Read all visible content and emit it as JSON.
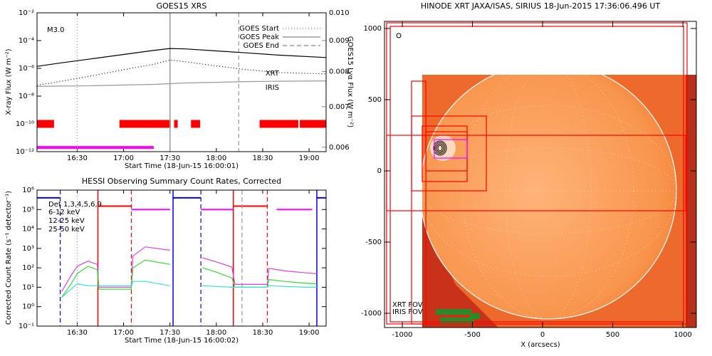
{
  "chart_data": [
    {
      "type": "line",
      "title": "GOES15 XRS",
      "x_label": "Start Time (18-Jun-15 16:00:01)",
      "y_label": "X-ray Flux (W m⁻²)",
      "y2_label": "GOES15 Lyα Flux (W m⁻²)",
      "annotation": "M3.0",
      "log_y": true,
      "xlim": [
        4,
        191
      ],
      "xticks": [
        {
          "value": 30,
          "label": "16:30"
        },
        {
          "value": 60,
          "label": "17:00"
        },
        {
          "value": 90,
          "label": "17:30"
        },
        {
          "value": 120,
          "label": "18:00"
        },
        {
          "value": 150,
          "label": "18:30"
        },
        {
          "value": 180,
          "label": "19:00"
        }
      ],
      "ylim": [
        1e-12,
        0.01
      ],
      "yticks": [
        {
          "value": 1e-12,
          "label": "10⁻¹²"
        },
        {
          "value": 1e-10,
          "label": "10⁻¹⁰"
        },
        {
          "value": 1e-08,
          "label": "10⁻⁸"
        },
        {
          "value": 1e-06,
          "label": "10⁻⁶"
        },
        {
          "value": 0.0001,
          "label": "10⁻⁴"
        },
        {
          "value": 0.01,
          "label": "10⁻²"
        }
      ],
      "y2lim": [
        0.0059,
        0.01
      ],
      "y2ticks": [
        0.006,
        0.007,
        0.008,
        0.009,
        {
          "value": 0.01,
          "label": "0.010"
        }
      ],
      "x": [
        4,
        20,
        40,
        60,
        80,
        90,
        100,
        120,
        140,
        160,
        191
      ],
      "series": [
        {
          "color": "#000000",
          "style": "solid",
          "values": [
            1.4e-06,
            2.5e-06,
            5e-06,
            1e-05,
            2e-05,
            2.7e-05,
            2.5e-05,
            1.8e-05,
            1.3e-05,
            9e-06,
            6e-06
          ]
        },
        {
          "color": "#000000",
          "style": "dotted",
          "values": [
            6e-08,
            1.2e-07,
            3e-07,
            8e-07,
            2e-06,
            4e-06,
            3e-06,
            1.5e-06,
            8e-07,
            5e-07,
            4e-07
          ]
        },
        {
          "color": "#999999",
          "style": "solid",
          "axis": "y2",
          "values": [
            0.00756,
            0.00757,
            0.00758,
            0.0076,
            0.00762,
            0.00764,
            0.00766,
            0.00768,
            0.0077,
            0.00771,
            0.00772
          ]
        }
      ],
      "coverage": [
        {
          "name": "XRT",
          "color": "#ff0000",
          "level": 1e-10,
          "intervals": [
            [
              4,
              15
            ],
            [
              57.3,
              90.5
            ],
            [
              92.7,
              95
            ],
            [
              103.6,
              109.5
            ],
            [
              148,
              173
            ],
            [
              174,
              191
            ]
          ]
        },
        {
          "name": "IRIS",
          "color": "#ff00ff",
          "level": 2e-12,
          "intervals": [
            [
              4,
              79.5
            ]
          ]
        }
      ],
      "markers": [
        {
          "name": "GOES Start",
          "x": 30,
          "color": "#999999",
          "style": "dotted"
        },
        {
          "name": "GOES Peak",
          "x": 90,
          "color": "#999999",
          "style": "solid"
        },
        {
          "name": "GOES End",
          "x": 134.5,
          "color": "#999999",
          "style": "dashed"
        }
      ]
    },
    {
      "type": "line",
      "title": "HESSI Observing Summary Count Rates, Corrected",
      "x_label": "Start Time (18-Jun-15 16:00:02)",
      "y_label": "Corrected Count Rate (s⁻¹ detector⁻¹)",
      "annotation": "Det 1,3,4,5,6,9",
      "log_y": true,
      "xlim": [
        4,
        191
      ],
      "xticks": [
        {
          "value": 30,
          "label": "16:30"
        },
        {
          "value": 60,
          "label": "17:00"
        },
        {
          "value": 90,
          "label": "17:30"
        },
        {
          "value": 120,
          "label": "18:00"
        },
        {
          "value": 150,
          "label": "18:30"
        },
        {
          "value": 180,
          "label": "19:00"
        }
      ],
      "ylim": [
        0.1,
        1000000
      ],
      "yticks": [
        {
          "value": 0.1,
          "label": "10⁻¹"
        },
        {
          "value": 1,
          "label": "10⁰"
        },
        {
          "value": 10,
          "label": "10¹"
        },
        {
          "value": 100,
          "label": "10²"
        },
        {
          "value": 1000,
          "label": "10³"
        },
        {
          "value": 10000,
          "label": "10⁴"
        },
        {
          "value": 100000,
          "label": "10⁵"
        },
        {
          "value": 1000000,
          "label": "10⁶"
        }
      ],
      "x": [
        20,
        26,
        30,
        37,
        43,
        44,
        54,
        65,
        66,
        74,
        90,
        100,
        111,
        120,
        130,
        132,
        141,
        153,
        154,
        164,
        178,
        185
      ],
      "series": [
        {
          "name": "6-12 keV",
          "color": "#e040e0",
          "style": "solid",
          "values": [
            6,
            40,
            120,
            220,
            150,
            10,
            10,
            10,
            400,
            1200,
            800,
            null,
            330,
            200,
            110,
            14,
            14,
            14,
            95,
            70,
            55,
            50
          ]
        },
        {
          "name": "12-25 keV",
          "color": "#30e030",
          "style": "solid",
          "values": [
            3,
            15,
            50,
            120,
            80,
            8,
            8,
            8,
            100,
            250,
            150,
            null,
            100,
            60,
            30,
            10,
            10,
            10,
            25,
            20,
            16,
            15
          ]
        },
        {
          "name": "25-50 keV",
          "color": "#30e0e0",
          "style": "solid",
          "values": [
            3,
            8,
            15,
            12,
            12,
            12,
            12,
            12,
            20,
            20,
            12,
            null,
            12,
            11,
            10,
            10,
            10,
            10,
            12,
            11,
            10,
            10
          ]
        }
      ],
      "coverage": [
        {
          "color": "#0000ff",
          "level": 400000,
          "intervals": [
            [
              4,
              19
            ],
            [
              92,
              110
            ],
            [
              185,
              191
            ]
          ]
        },
        {
          "color": "#ff0000",
          "level": 150000,
          "intervals": [
            [
              43.4,
              65
            ],
            [
              131,
              153
            ]
          ]
        },
        {
          "color": "#ff00ff",
          "level": 100000,
          "intervals": [
            [
              65,
              90
            ],
            [
              110,
              131
            ],
            [
              159,
              182
            ]
          ]
        }
      ],
      "markers": [
        {
          "x": 19,
          "color": "#0000ff",
          "style": "dashed"
        },
        {
          "x": 110,
          "color": "#0000ff",
          "style": "dashed"
        },
        {
          "x": 43.4,
          "color": "#ff0000",
          "style": "solid"
        },
        {
          "x": 131,
          "color": "#ff0000",
          "style": "solid"
        },
        {
          "x": 65,
          "color": "#ff0000",
          "style": "dashed"
        },
        {
          "x": 153,
          "color": "#ff0000",
          "style": "dashed"
        },
        {
          "x": 92,
          "color": "#0000ff",
          "style": "solid"
        },
        {
          "x": 185,
          "color": "#0000ff",
          "style": "solid"
        },
        {
          "x": 30,
          "color": "#999999",
          "style": "dotted"
        },
        {
          "x": 136.6,
          "color": "#999999",
          "style": "dashed"
        }
      ]
    },
    {
      "type": "image",
      "title": "HINODE XRT JAXA/ISAS, SIRIUS 18-Jun-2015 17:36:06.496 UT",
      "x_label": "X (arcsecs)",
      "xlim": [
        -1127,
        1096
      ],
      "ylim": [
        -1100,
        1050
      ],
      "xticks": [
        -1000,
        -500,
        0,
        500,
        1000
      ],
      "yticks": [
        -1000,
        -500,
        0,
        500,
        1000
      ],
      "fovs": [
        {
          "name": "XRT FOV",
          "color": "#ff0000",
          "boxes": [
            [
              -1112,
              1030,
              -1075,
              1040
            ],
            [
              -1086,
              1005,
              -1060,
              1015
            ],
            [
              -934,
              -832,
              -1075,
              630
            ],
            [
              -934,
              -401,
              -140,
              385
            ],
            [
              -858,
              -538,
              -75,
              315
            ],
            [
              -832,
              -538,
              0,
              275
            ],
            [
              -1112,
              1020,
              -280,
              250
            ]
          ]
        },
        {
          "name": "IRIS FOV",
          "color": "#ff00ff",
          "boxes": [
            [
              -772,
              -538,
              90,
              220
            ]
          ]
        }
      ]
    }
  ]
}
